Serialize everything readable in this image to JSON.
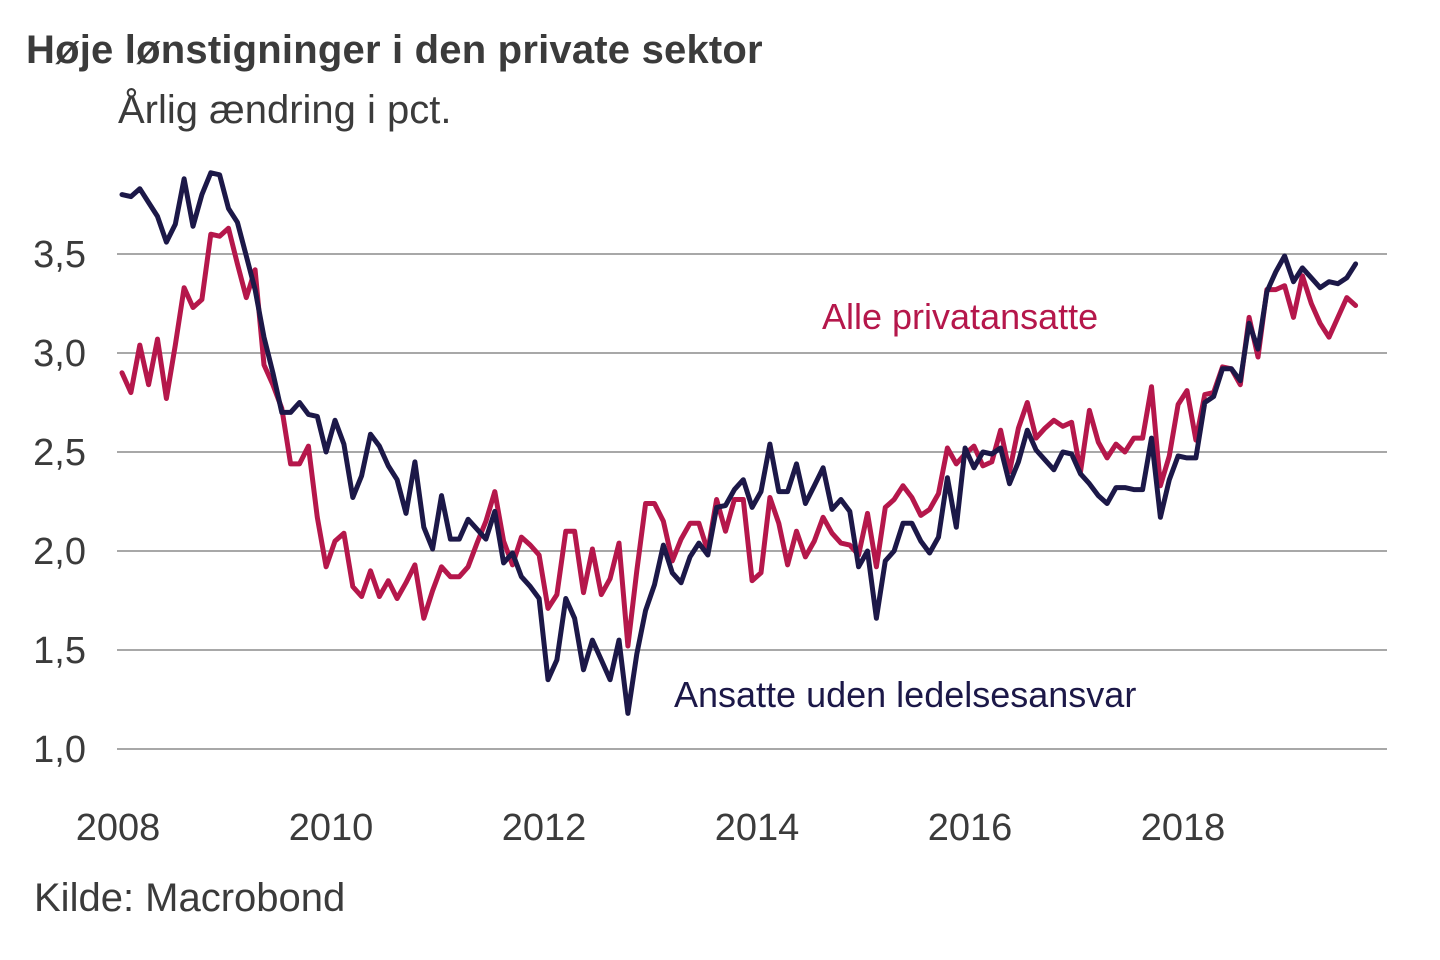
{
  "chart_data": {
    "type": "line",
    "title": "Høje lønstigninger i den private sektor",
    "subtitle": "Årlig ændring i pct.",
    "source": "Kilde: Macrobond",
    "xlabel": "",
    "ylabel": "",
    "x_start": "2008-01",
    "x_frequency": "monthly",
    "xlim": [
      2008.0,
      2019.92
    ],
    "ylim": [
      1.0,
      3.9
    ],
    "grid": true,
    "legend": "inline-labels",
    "x_ticks": [
      "2008",
      "2010",
      "2012",
      "2014",
      "2016",
      "2018"
    ],
    "y_ticks": [
      "1,0",
      "1,5",
      "2,0",
      "2,5",
      "3,0",
      "3,5"
    ],
    "y_tick_values": [
      1.0,
      1.5,
      2.0,
      2.5,
      3.0,
      3.5
    ],
    "series": [
      {
        "name": "Alle privatansatte",
        "color": "#b5174b",
        "label_text": "Alle privatansatte",
        "values": [
          2.9,
          2.8,
          3.04,
          2.84,
          3.07,
          2.77,
          3.04,
          3.33,
          3.23,
          3.27,
          3.6,
          3.59,
          3.63,
          3.45,
          3.28,
          3.42,
          2.94,
          2.84,
          2.72,
          2.44,
          2.44,
          2.53,
          2.17,
          1.92,
          2.05,
          2.09,
          1.82,
          1.77,
          1.9,
          1.77,
          1.85,
          1.76,
          1.84,
          1.93,
          1.66,
          1.8,
          1.92,
          1.87,
          1.87,
          1.92,
          2.04,
          2.15,
          2.3,
          2.05,
          1.93,
          2.07,
          2.03,
          1.98,
          1.71,
          1.78,
          2.1,
          2.1,
          1.79,
          2.01,
          1.78,
          1.86,
          2.04,
          1.52,
          1.9,
          2.24,
          2.24,
          2.15,
          1.95,
          2.06,
          2.14,
          2.14,
          2.0,
          2.26,
          2.1,
          2.26,
          2.26,
          1.85,
          1.89,
          2.27,
          2.14,
          1.93,
          2.1,
          1.97,
          2.05,
          2.17,
          2.09,
          2.04,
          2.03,
          1.98,
          2.19,
          1.92,
          2.22,
          2.26,
          2.33,
          2.27,
          2.18,
          2.21,
          2.29,
          2.52,
          2.44,
          2.49,
          2.53,
          2.43,
          2.45,
          2.61,
          2.4,
          2.62,
          2.75,
          2.57,
          2.62,
          2.66,
          2.63,
          2.65,
          2.4,
          2.71,
          2.55,
          2.47,
          2.54,
          2.5,
          2.57,
          2.57,
          2.83,
          2.33,
          2.48,
          2.74,
          2.81,
          2.56,
          2.79,
          2.8,
          2.93,
          2.92,
          2.84,
          3.18,
          2.98,
          3.32,
          3.32,
          3.34,
          3.18,
          3.39,
          3.25,
          3.15,
          3.08,
          3.18,
          3.28,
          3.24
        ]
      },
      {
        "name": "Ansatte uden ledelsesansvar",
        "color": "#1c1848",
        "label_text": "Ansatte uden ledelsesansvar",
        "values": [
          3.8,
          3.79,
          3.83,
          3.76,
          3.69,
          3.56,
          3.65,
          3.88,
          3.64,
          3.8,
          3.91,
          3.9,
          3.73,
          3.66,
          3.49,
          3.32,
          3.08,
          2.9,
          2.7,
          2.7,
          2.75,
          2.69,
          2.68,
          2.5,
          2.66,
          2.54,
          2.27,
          2.38,
          2.59,
          2.53,
          2.43,
          2.36,
          2.19,
          2.45,
          2.12,
          2.01,
          2.28,
          2.06,
          2.06,
          2.16,
          2.11,
          2.06,
          2.2,
          1.94,
          1.99,
          1.87,
          1.82,
          1.76,
          1.35,
          1.45,
          1.76,
          1.66,
          1.4,
          1.55,
          1.45,
          1.35,
          1.55,
          1.18,
          1.48,
          1.7,
          1.83,
          2.03,
          1.89,
          1.84,
          1.97,
          2.04,
          1.98,
          2.22,
          2.23,
          2.31,
          2.36,
          2.22,
          2.3,
          2.54,
          2.3,
          2.3,
          2.44,
          2.24,
          2.33,
          2.42,
          2.21,
          2.26,
          2.2,
          1.92,
          2.0,
          1.66,
          1.95,
          2.0,
          2.14,
          2.14,
          2.05,
          1.99,
          2.07,
          2.37,
          2.12,
          2.52,
          2.42,
          2.5,
          2.49,
          2.52,
          2.34,
          2.45,
          2.61,
          2.51,
          2.46,
          2.41,
          2.5,
          2.49,
          2.39,
          2.34,
          2.28,
          2.24,
          2.32,
          2.32,
          2.31,
          2.31,
          2.57,
          2.17,
          2.36,
          2.48,
          2.47,
          2.47,
          2.75,
          2.78,
          2.92,
          2.92,
          2.86,
          3.15,
          3.02,
          3.31,
          3.41,
          3.49,
          3.36,
          3.43,
          3.38,
          3.33,
          3.36,
          3.35,
          3.38,
          3.45
        ]
      }
    ]
  }
}
